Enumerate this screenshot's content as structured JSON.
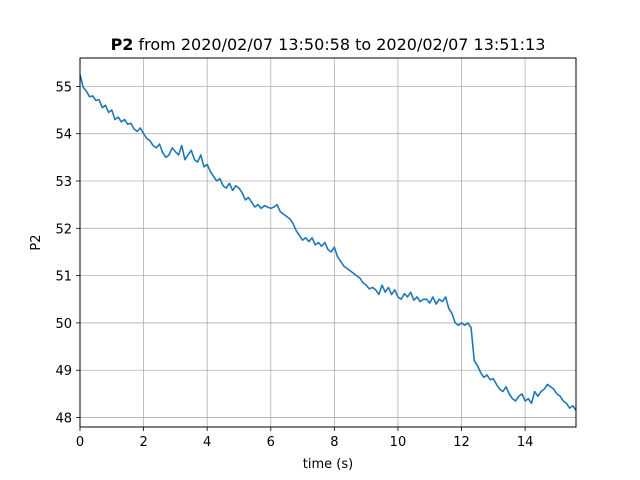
{
  "chart_data": {
    "type": "line",
    "title_bold": "P2",
    "title_rest": " from 2020/02/07 13:50:58 to 2020/02/07 13:51:13",
    "xlabel": "time (s)",
    "ylabel": "P2",
    "xlim": [
      0,
      15.6
    ],
    "ylim": [
      47.8,
      55.6
    ],
    "xticks": [
      0,
      2,
      4,
      6,
      8,
      10,
      12,
      14
    ],
    "yticks": [
      48,
      49,
      50,
      51,
      52,
      53,
      54,
      55
    ],
    "grid": true,
    "series": [
      {
        "color": "#1f77b4",
        "x": [
          0.0,
          0.1,
          0.2,
          0.3,
          0.4,
          0.5,
          0.6,
          0.7,
          0.8,
          0.9,
          1.0,
          1.1,
          1.2,
          1.3,
          1.4,
          1.5,
          1.6,
          1.7,
          1.8,
          1.9,
          2.0,
          2.1,
          2.2,
          2.3,
          2.4,
          2.5,
          2.6,
          2.7,
          2.8,
          2.9,
          3.0,
          3.1,
          3.2,
          3.3,
          3.4,
          3.5,
          3.6,
          3.7,
          3.8,
          3.9,
          4.0,
          4.1,
          4.2,
          4.3,
          4.4,
          4.5,
          4.6,
          4.7,
          4.8,
          4.9,
          5.0,
          5.1,
          5.2,
          5.3,
          5.4,
          5.5,
          5.6,
          5.7,
          5.8,
          5.9,
          6.0,
          6.1,
          6.2,
          6.3,
          6.4,
          6.5,
          6.6,
          6.7,
          6.8,
          6.9,
          7.0,
          7.1,
          7.2,
          7.3,
          7.4,
          7.5,
          7.6,
          7.7,
          7.8,
          7.9,
          8.0,
          8.1,
          8.2,
          8.3,
          8.4,
          8.5,
          8.6,
          8.7,
          8.8,
          8.9,
          9.0,
          9.1,
          9.2,
          9.3,
          9.4,
          9.5,
          9.6,
          9.7,
          9.8,
          9.9,
          10.0,
          10.1,
          10.2,
          10.3,
          10.4,
          10.5,
          10.6,
          10.7,
          10.8,
          10.9,
          11.0,
          11.1,
          11.2,
          11.3,
          11.4,
          11.5,
          11.6,
          11.7,
          11.8,
          11.9,
          12.0,
          12.1,
          12.2,
          12.3,
          12.4,
          12.5,
          12.6,
          12.7,
          12.8,
          12.9,
          13.0,
          13.1,
          13.2,
          13.3,
          13.4,
          13.5,
          13.6,
          13.7,
          13.8,
          13.9,
          14.0,
          14.1,
          14.2,
          14.3,
          14.4,
          14.5,
          14.6,
          14.7,
          14.8,
          14.9,
          15.0,
          15.1,
          15.2,
          15.3,
          15.4,
          15.5,
          15.6
        ],
        "y": [
          55.25,
          54.98,
          54.9,
          54.78,
          54.8,
          54.7,
          54.72,
          54.55,
          54.6,
          54.45,
          54.5,
          54.3,
          54.35,
          54.25,
          54.3,
          54.2,
          54.22,
          54.1,
          54.05,
          54.12,
          54.0,
          53.9,
          53.85,
          53.75,
          53.7,
          53.78,
          53.6,
          53.5,
          53.55,
          53.7,
          53.62,
          53.55,
          53.75,
          53.45,
          53.55,
          53.65,
          53.45,
          53.4,
          53.55,
          53.3,
          53.35,
          53.2,
          53.1,
          53.0,
          53.05,
          52.9,
          52.85,
          52.95,
          52.8,
          52.9,
          52.85,
          52.75,
          52.6,
          52.65,
          52.55,
          52.45,
          52.5,
          52.42,
          52.48,
          52.45,
          52.42,
          52.45,
          52.5,
          52.35,
          52.3,
          52.25,
          52.2,
          52.1,
          51.95,
          51.85,
          51.75,
          51.8,
          51.72,
          51.8,
          51.65,
          51.7,
          51.62,
          51.7,
          51.55,
          51.5,
          51.6,
          51.4,
          51.3,
          51.2,
          51.15,
          51.1,
          51.05,
          51.0,
          50.95,
          50.85,
          50.8,
          50.72,
          50.75,
          50.7,
          50.6,
          50.8,
          50.65,
          50.75,
          50.6,
          50.7,
          50.55,
          50.5,
          50.62,
          50.55,
          50.65,
          50.48,
          50.55,
          50.45,
          50.5,
          50.5,
          50.42,
          50.55,
          50.4,
          50.5,
          50.45,
          50.55,
          50.3,
          50.2,
          50.0,
          49.95,
          50.0,
          49.95,
          50.0,
          49.9,
          49.2,
          49.1,
          48.95,
          48.85,
          48.9,
          48.8,
          48.82,
          48.7,
          48.6,
          48.55,
          48.65,
          48.5,
          48.4,
          48.35,
          48.45,
          48.5,
          48.35,
          48.4,
          48.3,
          48.55,
          48.45,
          48.55,
          48.6,
          48.7,
          48.65,
          48.6,
          48.5,
          48.45,
          48.35,
          48.3,
          48.2,
          48.25,
          48.15
        ]
      }
    ]
  }
}
